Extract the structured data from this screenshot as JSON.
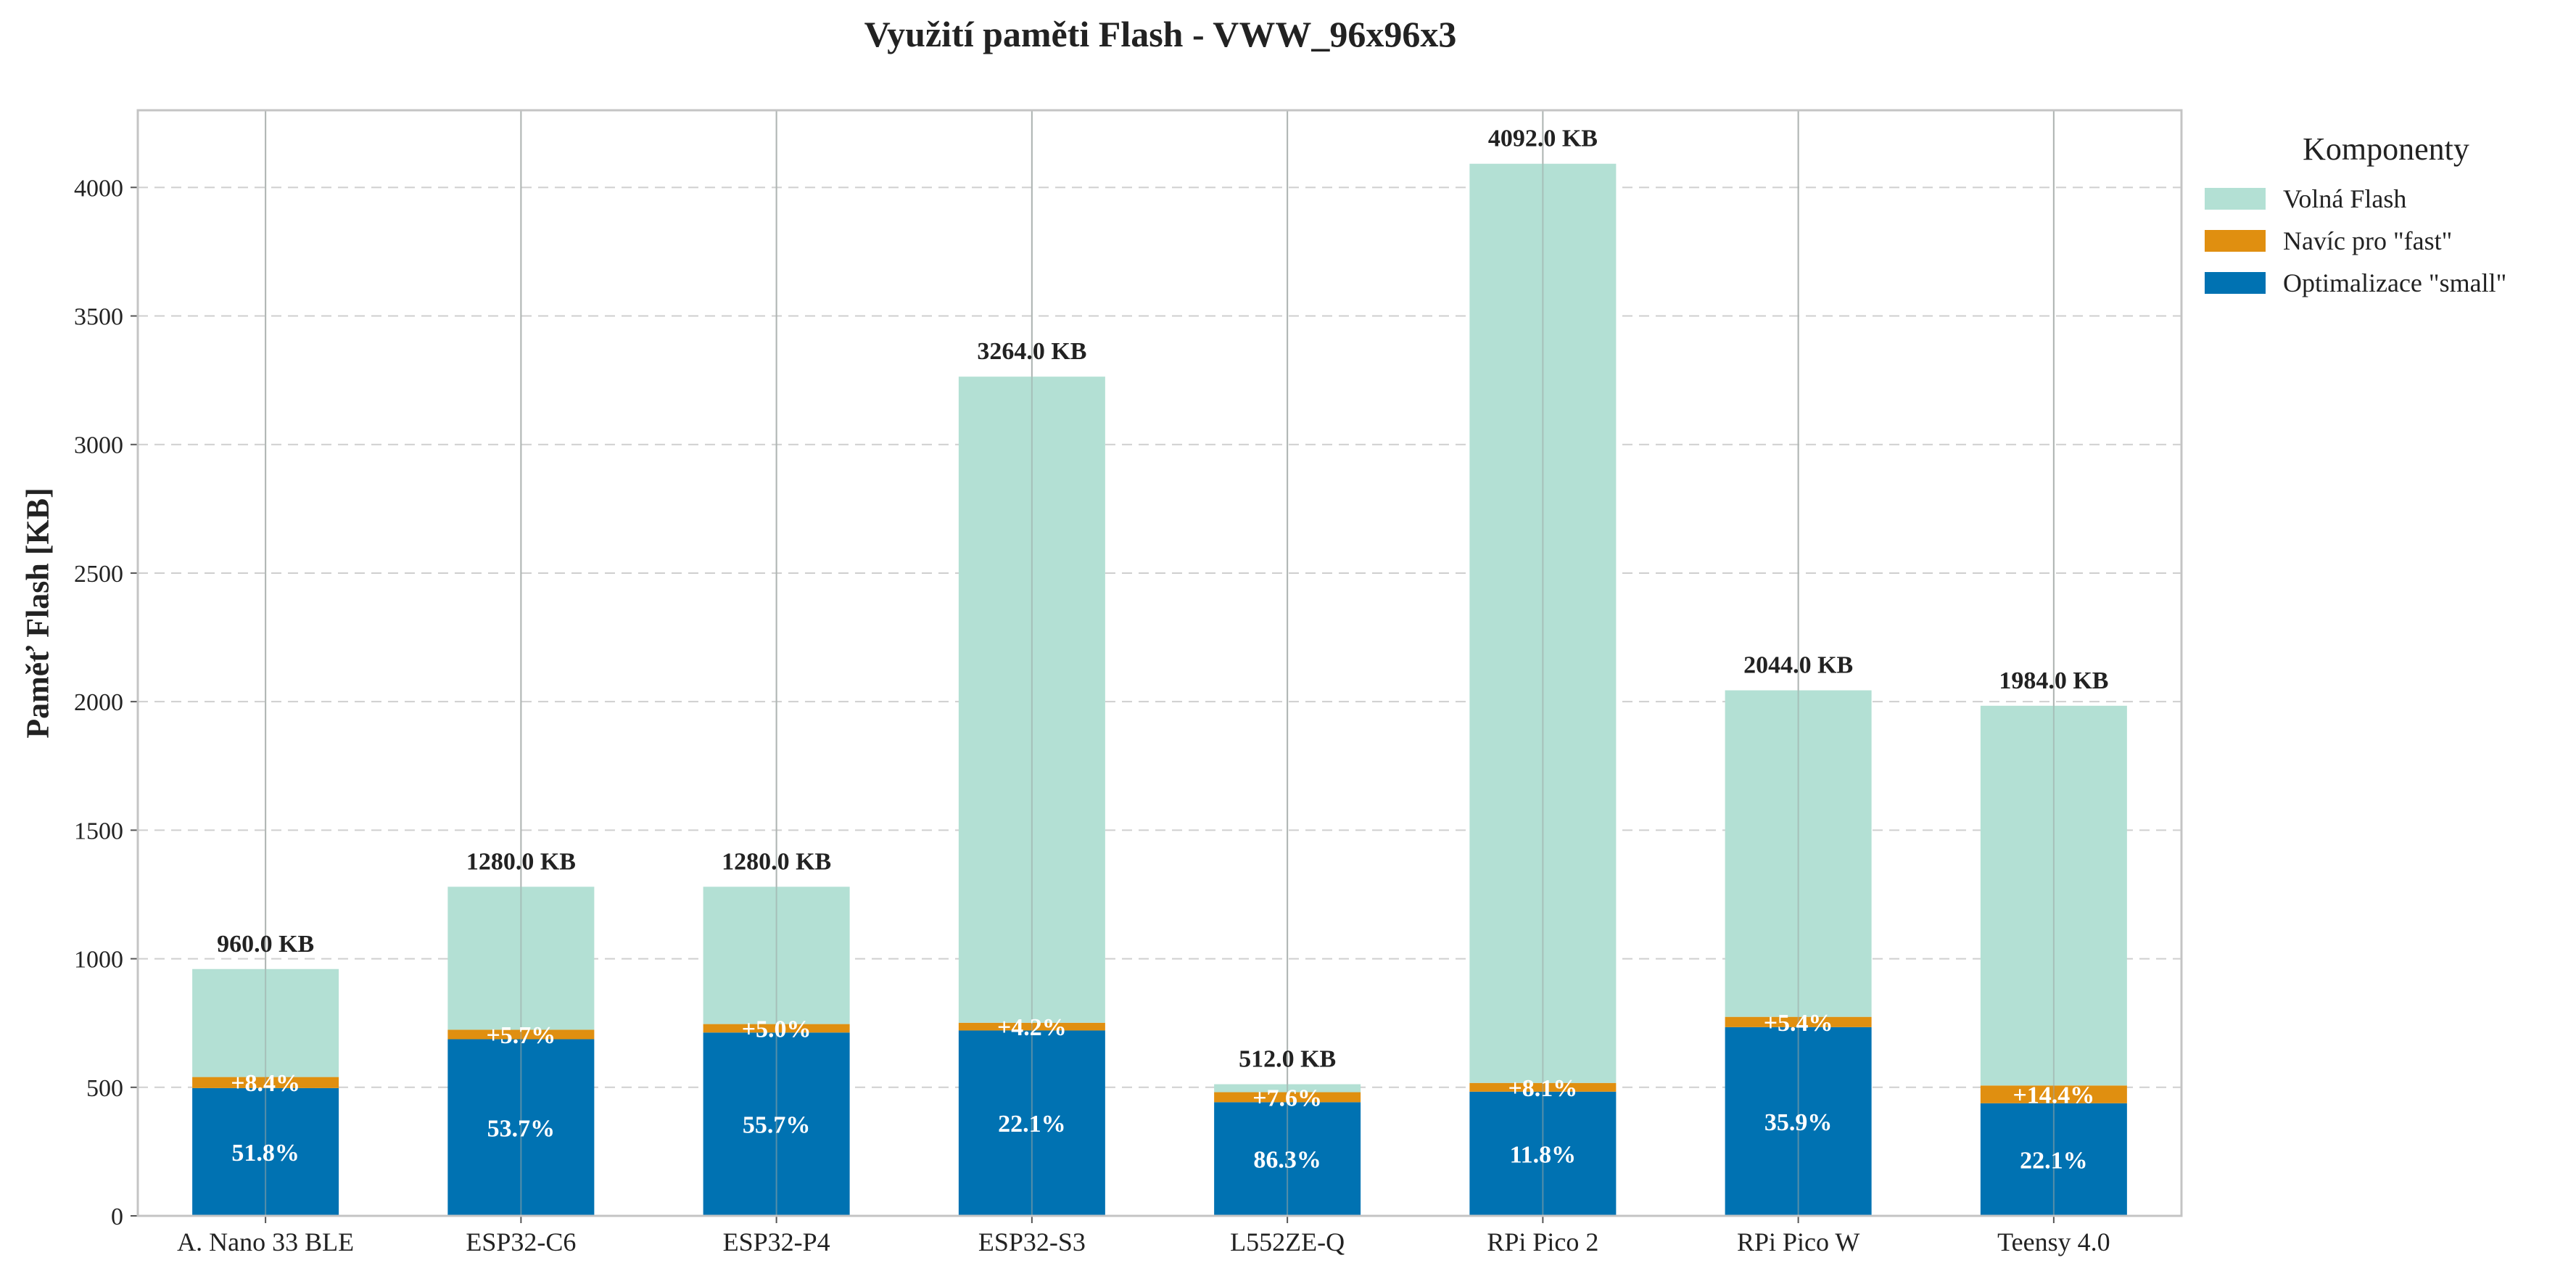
{
  "chart_data": {
    "type": "bar",
    "stacked": true,
    "title": "Využití paměti Flash - VWW_96x96x3",
    "xlabel": "",
    "ylabel": "Paměť Flash [KB]",
    "ylim": [
      0,
      4300
    ],
    "yticks": [
      0,
      500,
      1000,
      1500,
      2000,
      2500,
      3000,
      3500,
      4000
    ],
    "grid": true,
    "legend_title": "Komponenty",
    "legend_position": "upper-right-outside",
    "categories": [
      "A. Nano 33 BLE",
      "ESP32-C6",
      "ESP32-P4",
      "ESP32-S3",
      "L552ZE-Q",
      "RPi Pico 2",
      "RPi Pico W",
      "Teensy 4.0"
    ],
    "series": [
      {
        "name": "Optimalizace \"small\"",
        "color": "#0072b2",
        "values": [
          497,
          687,
          713,
          721,
          442,
          483,
          734,
          438
        ],
        "labels": [
          "51.8%",
          "53.7%",
          "55.7%",
          "22.1%",
          "86.3%",
          "11.8%",
          "35.9%",
          "22.1%"
        ]
      },
      {
        "name": "Navíc pro \"fast\"",
        "color": "#e08f10",
        "values": [
          43,
          37,
          33,
          30,
          39,
          34,
          40,
          69
        ],
        "labels": [
          "+8.4%",
          "+5.7%",
          "+5.0%",
          "+4.2%",
          "+7.6%",
          "+8.1%",
          "+5.4%",
          "+14.4%"
        ]
      },
      {
        "name": "Volná Flash",
        "color": "#b3e0d4",
        "values": [
          420,
          556,
          534,
          2513,
          31,
          3575,
          1270,
          1477
        ]
      }
    ],
    "totals": [
      960.0,
      1280.0,
      1280.0,
      3264.0,
      512.0,
      4092.0,
      2044.0,
      1984.0
    ],
    "total_labels": [
      "960.0 KB",
      "1280.0 KB",
      "1280.0 KB",
      "3264.0 KB",
      "512.0 KB",
      "4092.0 KB",
      "2044.0 KB",
      "1984.0 KB"
    ],
    "legend_order": [
      "Volná Flash",
      "Navíc pro \"fast\"",
      "Optimalizace \"small\""
    ]
  }
}
